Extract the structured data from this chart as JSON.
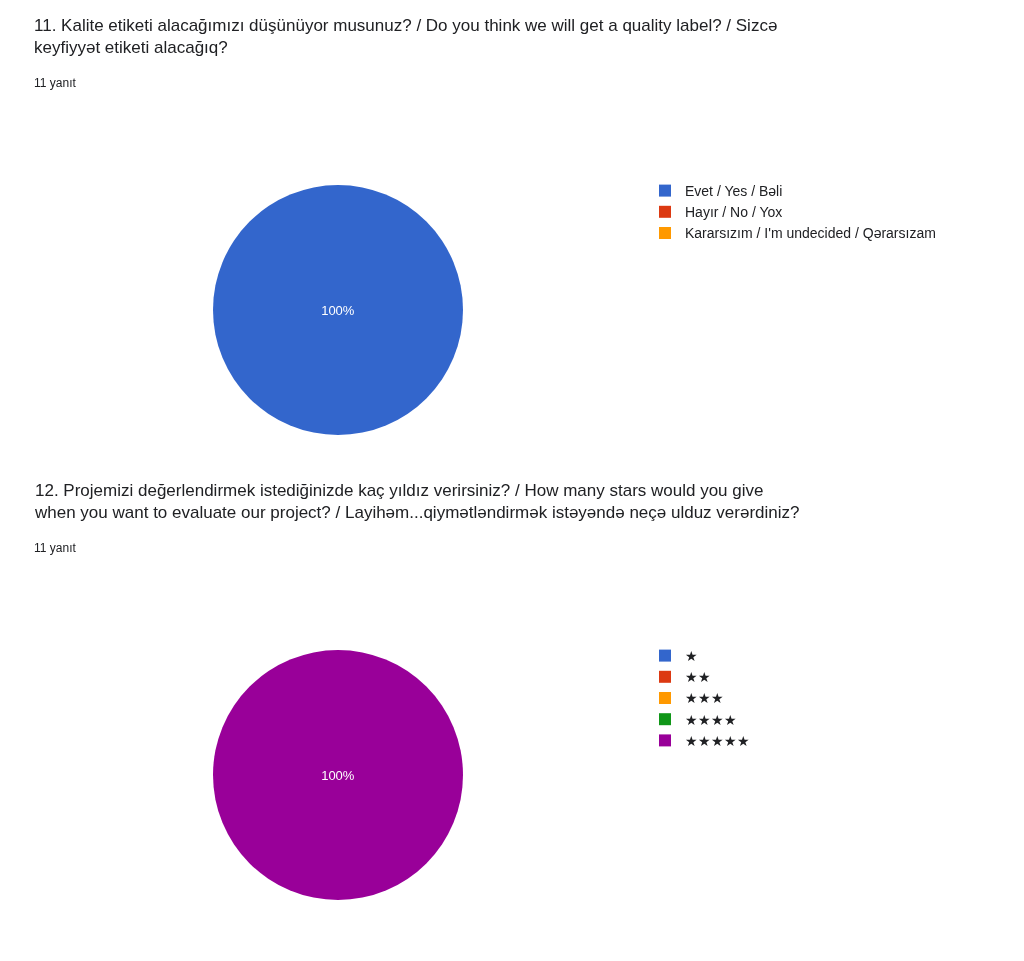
{
  "chart_data": [
    {
      "type": "pie",
      "title": "11. Kalite etiketi alacağımızı düşünüyor musunuz? / Do you think we will get a quality label? / Sizcə keyfiyyət etiketi alacağıq?",
      "subtitle": "11 yanıt",
      "categories": [
        "Evet / Yes / Bəli",
        "Hayır / No / Yox",
        "Kararsızım / I'm undecided / Qərarsızam"
      ],
      "values": [
        100,
        0,
        0
      ],
      "colors": [
        "#3366cc",
        "#dc3912",
        "#ff9900"
      ],
      "value_labels": [
        "100%",
        null,
        null
      ],
      "legend": "right"
    },
    {
      "type": "pie",
      "title": "12. Projemizi değerlendirmek istediğinizde kaç yıldız verirsiniz? / How many stars would you give when you want to evaluate our project? / Layihəm...qiymətləndirmək istəyəndə neçə ulduz verərdiniz?",
      "subtitle": "11 yanıt",
      "categories": [
        "★",
        "★★",
        "★★★",
        "★★★★",
        "★★★★★"
      ],
      "values": [
        0,
        0,
        0,
        0,
        100
      ],
      "colors": [
        "#3366cc",
        "#dc3912",
        "#ff9900",
        "#109618",
        "#990099"
      ],
      "value_labels": [
        null,
        null,
        null,
        null,
        "100%"
      ],
      "legend": "right"
    }
  ]
}
